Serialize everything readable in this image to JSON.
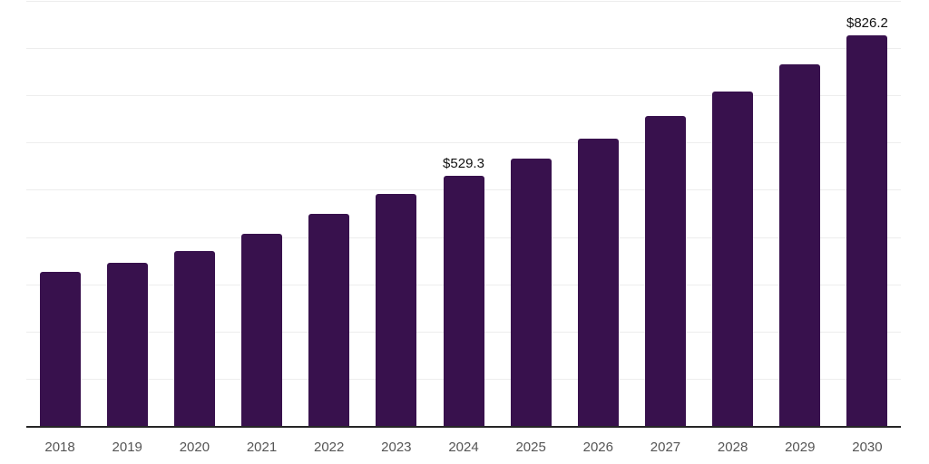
{
  "chart_data": {
    "type": "bar",
    "title": "",
    "xlabel": "",
    "ylabel": "",
    "categories": [
      "2018",
      "2019",
      "2020",
      "2021",
      "2022",
      "2023",
      "2024",
      "2025",
      "2026",
      "2027",
      "2028",
      "2029",
      "2030"
    ],
    "values": [
      325.5,
      344.8,
      370.4,
      407.6,
      448.4,
      491.2,
      529.3,
      566.8,
      608.6,
      656.8,
      708.0,
      765.7,
      826.2
    ],
    "value_labels": [
      {
        "category": "2024",
        "text": "$529.3"
      },
      {
        "category": "2030",
        "text": "$826.2"
      }
    ],
    "ylim": [
      0,
      900
    ],
    "gridline_interval": 100,
    "grid": "horizontal",
    "y_tick_labels_visible": false,
    "legend_position": "none",
    "bar_color": "#38114d",
    "gridline_color": "#ededed",
    "axis_line_color": "#262626",
    "tick_label_color": "#555555",
    "value_label_color": "#111111",
    "background_color": "#ffffff"
  }
}
